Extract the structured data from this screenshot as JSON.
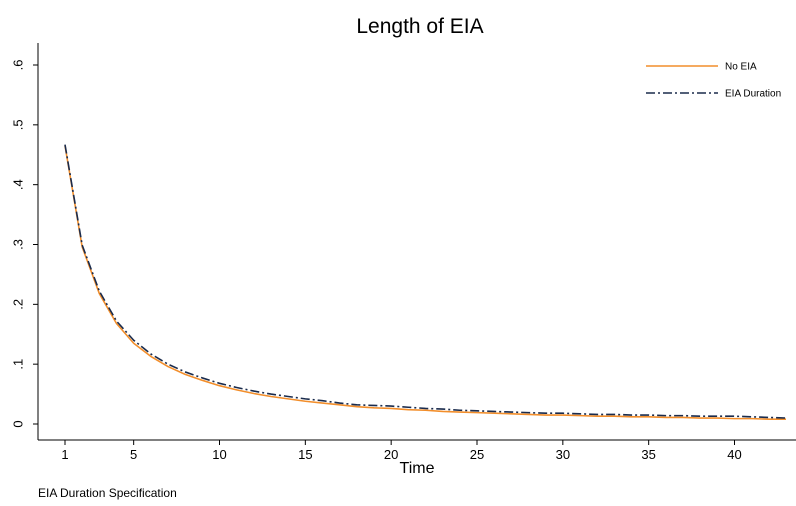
{
  "chart_data": {
    "type": "line",
    "title": "Length of EIA",
    "xlabel": "Time",
    "ylabel": "",
    "note": "EIA Duration Specification",
    "xlim": [
      1,
      43
    ],
    "ylim": [
      0,
      0.6
    ],
    "x_ticks": [
      1,
      5,
      10,
      15,
      20,
      25,
      30,
      35,
      40
    ],
    "x_tick_labels": [
      "1",
      "5",
      "10",
      "15",
      "20",
      "25",
      "30",
      "35",
      "40"
    ],
    "y_ticks": [
      0,
      0.1,
      0.2,
      0.3,
      0.4,
      0.5,
      0.6
    ],
    "y_tick_labels": [
      "0",
      ".1",
      ".2",
      ".3",
      ".4",
      ".5",
      ".6"
    ],
    "grid": false,
    "legend_position": "top-right",
    "x": [
      1,
      2,
      3,
      4,
      5,
      6,
      7,
      8,
      9,
      10,
      11,
      12,
      13,
      14,
      15,
      16,
      17,
      18,
      19,
      20,
      21,
      22,
      23,
      24,
      25,
      26,
      27,
      28,
      29,
      30,
      31,
      32,
      33,
      34,
      35,
      36,
      37,
      38,
      39,
      40,
      41,
      42,
      43
    ],
    "series": [
      {
        "name": "No EIA",
        "color": "#f28e2b",
        "style": "solid",
        "values": [
          0.465,
          0.296,
          0.218,
          0.168,
          0.135,
          0.113,
          0.096,
          0.083,
          0.073,
          0.064,
          0.057,
          0.051,
          0.046,
          0.042,
          0.038,
          0.035,
          0.032,
          0.029,
          0.027,
          0.026,
          0.024,
          0.023,
          0.021,
          0.02,
          0.019,
          0.018,
          0.017,
          0.016,
          0.015,
          0.015,
          0.014,
          0.013,
          0.013,
          0.012,
          0.012,
          0.011,
          0.011,
          0.01,
          0.01,
          0.009,
          0.009,
          0.008,
          0.008
        ]
      },
      {
        "name": "EIA Duration",
        "color": "#1a2b4c",
        "style": "dash-dot",
        "values": [
          0.467,
          0.299,
          0.222,
          0.172,
          0.14,
          0.117,
          0.1,
          0.087,
          0.077,
          0.068,
          0.061,
          0.055,
          0.05,
          0.046,
          0.042,
          0.039,
          0.035,
          0.032,
          0.031,
          0.03,
          0.028,
          0.026,
          0.025,
          0.023,
          0.022,
          0.021,
          0.02,
          0.019,
          0.018,
          0.018,
          0.017,
          0.016,
          0.016,
          0.015,
          0.015,
          0.014,
          0.014,
          0.013,
          0.013,
          0.013,
          0.012,
          0.011,
          0.01
        ]
      }
    ]
  }
}
